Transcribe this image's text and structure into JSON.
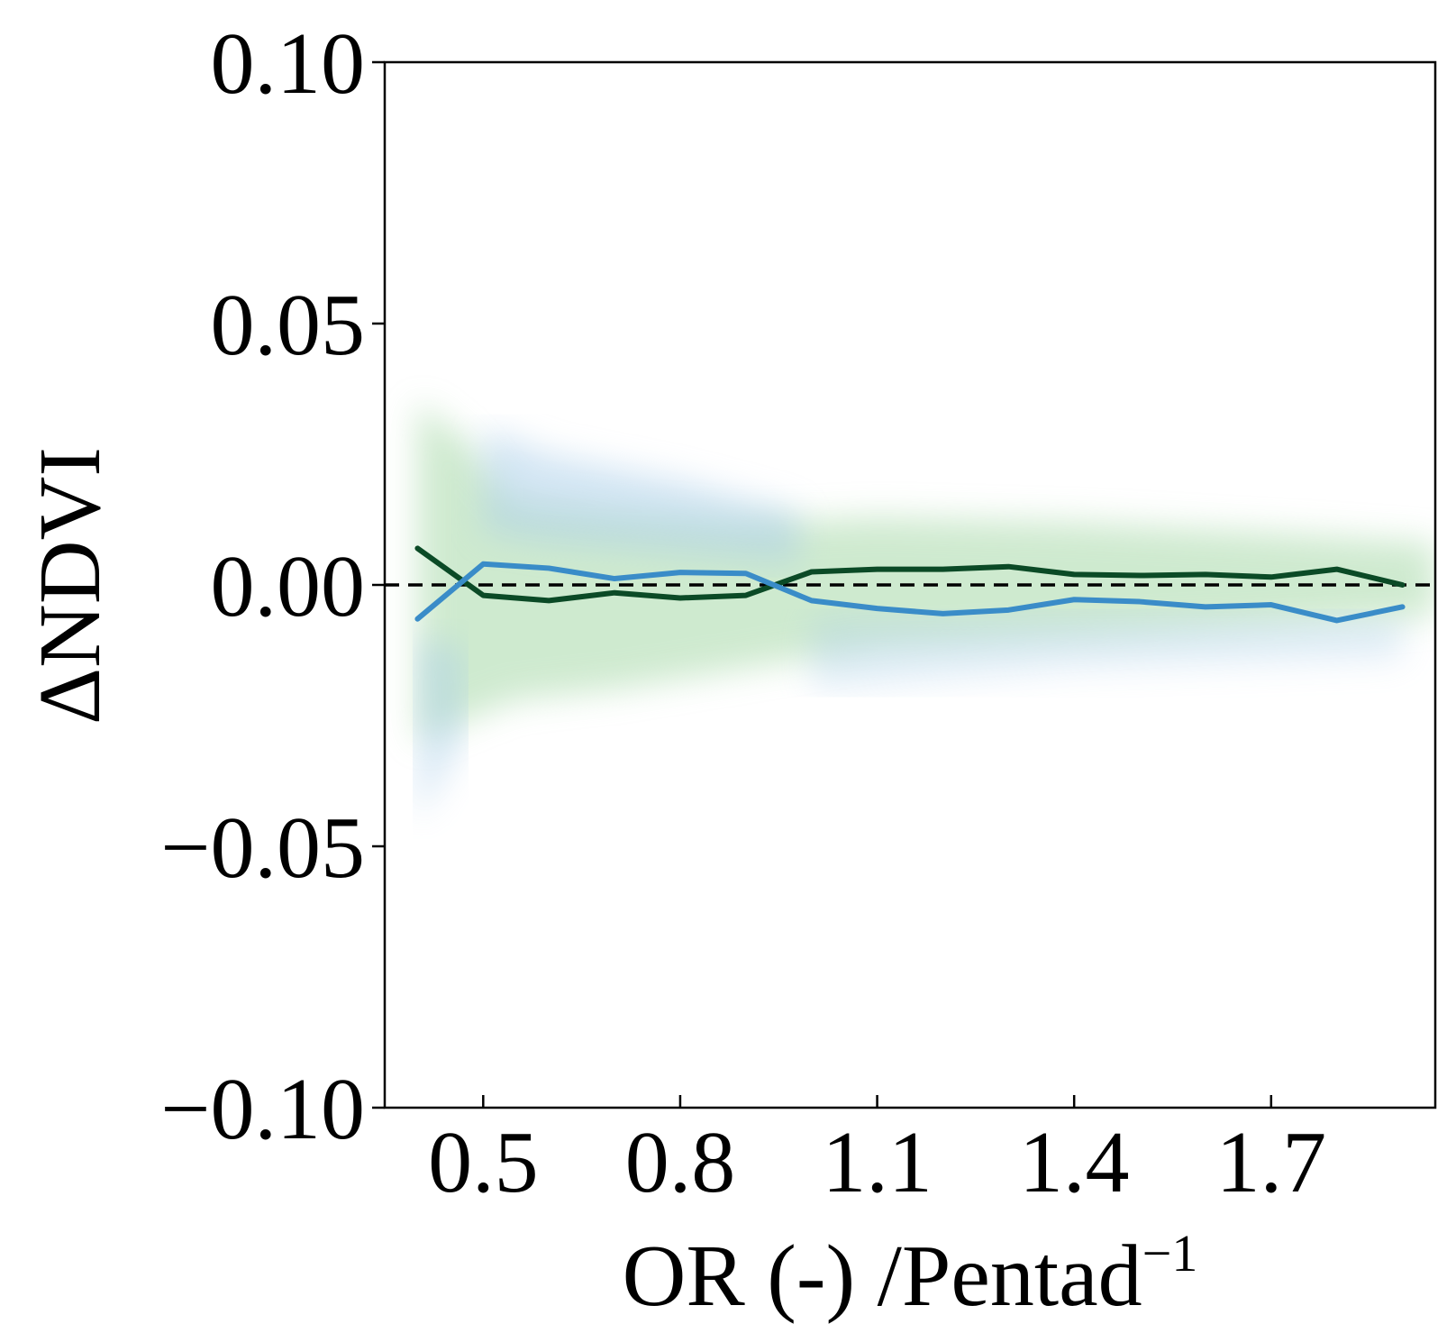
{
  "chart_data": {
    "type": "line",
    "title": "",
    "xlabel": "OR (-) /Pentad",
    "xlabel_superscript": "−1",
    "ylabel": "ΔNDVI",
    "xlim": [
      0.35,
      1.95
    ],
    "ylim": [
      -0.1,
      0.1
    ],
    "xticks": [
      0.5,
      0.8,
      1.1,
      1.4,
      1.7
    ],
    "xtick_labels": [
      "0.5",
      "0.8",
      "1.1",
      "1.4",
      "1.7"
    ],
    "yticks": [
      0.1,
      0.05,
      0.0,
      -0.05,
      -0.1
    ],
    "ytick_labels": [
      "0.10",
      "0.05",
      "0.00",
      "−0.05",
      "−0.10"
    ],
    "grid": false,
    "reference_line": {
      "y": 0.0,
      "style": "dashed",
      "color": "#000000"
    },
    "series": [
      {
        "name": "dark green line",
        "color": "#0b4a26",
        "x": [
          0.4,
          0.5,
          0.6,
          0.7,
          0.8,
          0.9,
          1.0,
          1.1,
          1.2,
          1.3,
          1.4,
          1.5,
          1.6,
          1.7,
          1.8,
          1.9
        ],
        "y": [
          0.007,
          -0.002,
          -0.003,
          -0.0015,
          -0.0025,
          -0.002,
          0.0025,
          0.003,
          0.003,
          0.0035,
          0.002,
          0.0018,
          0.002,
          0.0015,
          0.003,
          0.0
        ]
      },
      {
        "name": "blue line",
        "color": "#3a8cc8",
        "x": [
          0.4,
          0.5,
          0.6,
          0.7,
          0.8,
          0.9,
          1.0,
          1.1,
          1.2,
          1.3,
          1.4,
          1.5,
          1.6,
          1.7,
          1.8,
          1.9
        ],
        "y": [
          -0.0065,
          0.004,
          0.0032,
          0.0012,
          0.0024,
          0.0022,
          -0.003,
          -0.0045,
          -0.0055,
          -0.0048,
          -0.0028,
          -0.0032,
          -0.0042,
          -0.0038,
          -0.0068,
          -0.0042
        ]
      }
    ],
    "scatter_bands": [
      {
        "name": "green scatter cloud",
        "color": "#a7d9a9"
      },
      {
        "name": "blue scatter cloud",
        "color": "#a9cde9"
      }
    ]
  }
}
